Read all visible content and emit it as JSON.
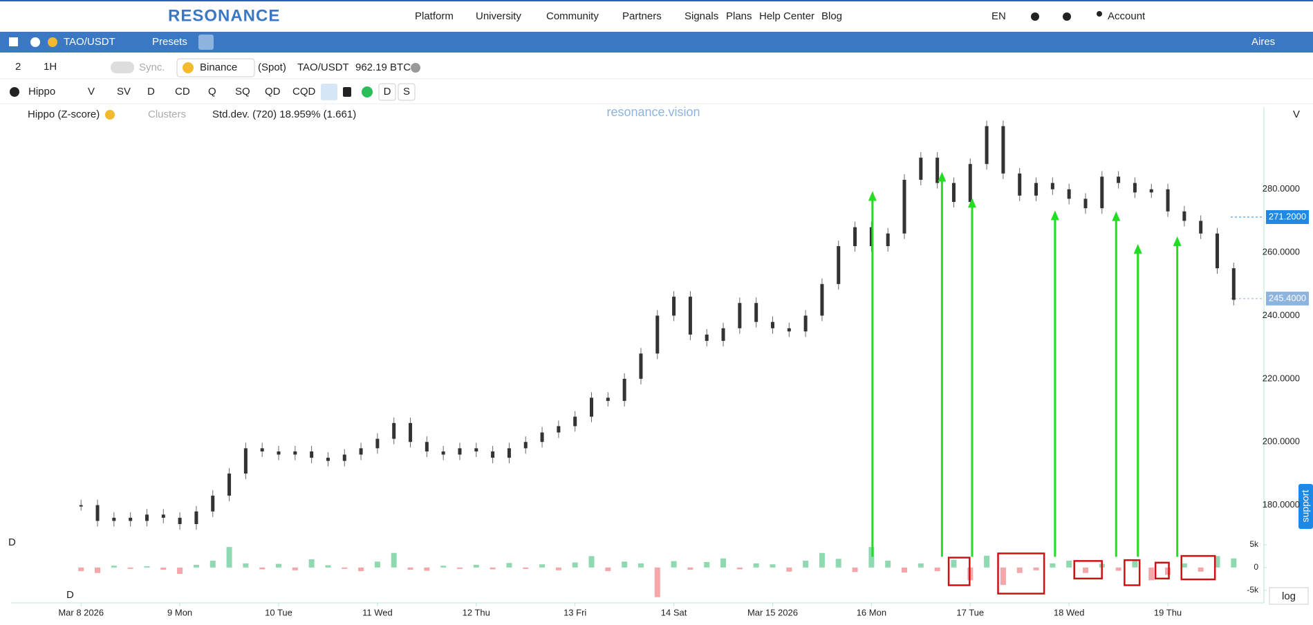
{
  "header": {
    "logo": "RESONANCE",
    "menu": [
      "Platform",
      "University",
      "Community",
      "Partners",
      "Signals",
      "Plans",
      "Help Center",
      "Blog"
    ],
    "language": "EN",
    "account": "Account"
  },
  "symbol_bar": {
    "symbol": "TAO/USDT",
    "presets": "Presets",
    "user": "Aires"
  },
  "toolbar": {
    "layout": "2",
    "interval": "1H",
    "sync": "Sync.",
    "exchange": "Binance",
    "market": "(Spot)",
    "pair": "TAO/USDT",
    "volume": "962.19 BTC"
  },
  "indicator_bar": {
    "name": "Hippo",
    "buttons": [
      "V",
      "SV",
      "D",
      "CD",
      "Q",
      "SQ",
      "QD",
      "CQD"
    ],
    "extra": [
      "D",
      "S"
    ]
  },
  "legend": {
    "indicator": "Hippo (Z-score)",
    "clusters": "Clusters",
    "stddev": "Std.dev. (720) 18.959% (1.661)"
  },
  "watermark": "resonance.vision",
  "axis_mode": "V",
  "pane_label": "D",
  "profile_label": "D",
  "scale_button": "log",
  "support": "support",
  "chart_data": {
    "type": "price",
    "xlim": [
      -17,
      287
    ],
    "xticks": [
      {
        "value": 0,
        "label": "Mar 8 2026"
      },
      {
        "value": 24,
        "label": "9 Mon"
      },
      {
        "value": 48,
        "label": "10 Tue"
      },
      {
        "value": 72,
        "label": "11 Wed"
      },
      {
        "value": 96,
        "label": "12 Thu"
      },
      {
        "value": 120,
        "label": "13 Fri"
      },
      {
        "value": 144,
        "label": "14 Sat"
      },
      {
        "value": 168,
        "label": "Mar 15 2026"
      },
      {
        "value": 192,
        "label": "16 Mon"
      },
      {
        "value": 216,
        "label": "17 Tue"
      },
      {
        "value": 240,
        "label": "18 Wed"
      },
      {
        "value": 264,
        "label": "19 Thu"
      }
    ],
    "ylim": [
      167,
      306
    ],
    "yticks": [
      {
        "value": 180,
        "label": "180.0000"
      },
      {
        "value": 200,
        "label": "200.0000"
      },
      {
        "value": 220,
        "label": "220.0000"
      },
      {
        "value": 240,
        "label": "240.0000"
      },
      {
        "value": 260,
        "label": "260.0000"
      },
      {
        "value": 280,
        "label": "280.0000"
      }
    ],
    "y2lim": [
      -7000,
      6500
    ],
    "y2ticks": [
      {
        "value": -5000,
        "label": "-5k"
      },
      0,
      {
        "value": 5000,
        "label": "5k"
      }
    ],
    "price_markers": [
      {
        "value": 271.2,
        "label": "271.2000",
        "color": "#1e88e5"
      },
      {
        "value": 245.4,
        "label": "245.4000",
        "color": "#8db4de"
      }
    ],
    "x": [
      0,
      4,
      8,
      12,
      16,
      20,
      24,
      28,
      32,
      36,
      40,
      44,
      48,
      52,
      56,
      60,
      64,
      68,
      72,
      76,
      80,
      84,
      88,
      92,
      96,
      100,
      104,
      108,
      112,
      116,
      120,
      124,
      128,
      132,
      136,
      140,
      144,
      148,
      152,
      156,
      160,
      164,
      168,
      172,
      176,
      180,
      184,
      188,
      192,
      196,
      200,
      204,
      208,
      212,
      216,
      220,
      224,
      228,
      232,
      236,
      240,
      244,
      248,
      252,
      256,
      260,
      264,
      268,
      272,
      276,
      280
    ],
    "series": [
      {
        "name": "TAO/USDT",
        "color": "#333333",
        "values": [
          180,
          175,
          176,
          175,
          177,
          176,
          174,
          178,
          183,
          190,
          198,
          197,
          196,
          197,
          195,
          194,
          196,
          198,
          201,
          206,
          200,
          197,
          196,
          198,
          197,
          195,
          198,
          200,
          203,
          205,
          208,
          214,
          213,
          220,
          228,
          240,
          246,
          234,
          232,
          236,
          244,
          238,
          236,
          235,
          240,
          250,
          262,
          268,
          262,
          266,
          283,
          290,
          282,
          276,
          288,
          300,
          285,
          278,
          282,
          280,
          277,
          274,
          284,
          282,
          279,
          280,
          273,
          270,
          266,
          255,
          245
        ]
      },
      {
        "name": "D",
        "axis": "y2",
        "color": "#8fd9b0",
        "negative_color": "#f4a6a8",
        "values": [
          -800,
          -1200,
          400,
          -300,
          300,
          -500,
          -1400,
          600,
          1500,
          4500,
          900,
          -400,
          800,
          -600,
          1800,
          500,
          -300,
          -800,
          1300,
          3200,
          -500,
          -700,
          400,
          -300,
          600,
          -400,
          1000,
          -300,
          700,
          -600,
          1100,
          2500,
          -800,
          1300,
          900,
          -6500,
          1400,
          -500,
          1200,
          2000,
          -400,
          900,
          700,
          -900,
          1500,
          3200,
          1900,
          -1000,
          4500,
          1500,
          -1100,
          900,
          -800,
          1700,
          -2800,
          2600,
          -3800,
          -1200,
          -600,
          900,
          1500,
          -1200,
          800,
          -700,
          1500,
          -2800,
          -1600,
          900,
          -900,
          2500,
          2000
        ]
      }
    ]
  }
}
